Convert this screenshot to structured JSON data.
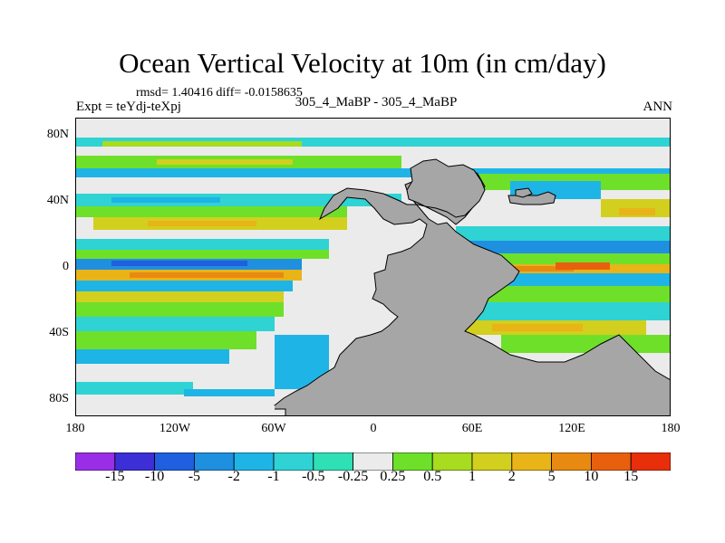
{
  "title": "Ocean Vertical Velocity at 10m (in cm/day)",
  "stats": "rmsd= 1.40416 diff= -0.0158635",
  "expt_label": "Expt = teYdj-teXpj",
  "center_label": "305_4_MaBP - 305_4_MaBP",
  "season_label": "ANN",
  "y_axis": {
    "labels": [
      "80N",
      "40N",
      "0",
      "40S",
      "80S"
    ],
    "values": [
      80,
      40,
      0,
      -40,
      -80
    ]
  },
  "x_axis": {
    "labels": [
      "180",
      "120W",
      "60W",
      "0",
      "60E",
      "120E",
      "180"
    ],
    "values": [
      -180,
      -120,
      -60,
      0,
      60,
      120,
      180
    ]
  },
  "colorbar": {
    "labels": [
      "-15",
      "-10",
      "-5",
      "-2",
      "-1",
      "-0.5",
      "-0.25",
      "0.25",
      "0.5",
      "1",
      "2",
      "5",
      "10",
      "15"
    ],
    "colors": [
      "#9a2ee6",
      "#3c2fd6",
      "#1f5fe0",
      "#1f8fe0",
      "#1fb4e6",
      "#2fd3d3",
      "#2ee0b4",
      "#ebebeb",
      "#6ee02a",
      "#a8dc1e",
      "#d2cf1e",
      "#e8b418",
      "#e88a12",
      "#e8600e",
      "#e82e0a"
    ]
  },
  "land_color": "#a6a6a6"
}
